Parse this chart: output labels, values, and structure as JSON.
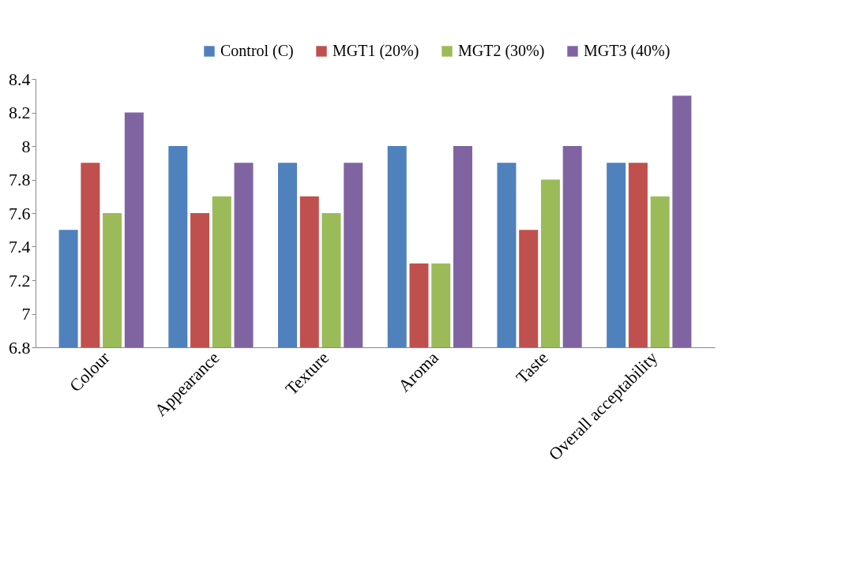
{
  "chart_data": {
    "type": "bar",
    "categories": [
      "Colour",
      "Appearance",
      "Texture",
      "Aroma",
      "Taste",
      "Overall acceptability"
    ],
    "series": [
      {
        "name": "Control (C)",
        "color": "#4f81bd",
        "values": [
          7.5,
          8.0,
          7.9,
          8.0,
          7.9,
          7.9
        ]
      },
      {
        "name": "MGT1 (20%)",
        "color": "#c0504d",
        "values": [
          7.9,
          7.6,
          7.7,
          7.3,
          7.5,
          7.9
        ]
      },
      {
        "name": "MGT2 (30%)",
        "color": "#9bbb59",
        "values": [
          7.6,
          7.7,
          7.6,
          7.3,
          7.8,
          7.7
        ]
      },
      {
        "name": "MGT3 (40%)",
        "color": "#8064a2",
        "values": [
          8.2,
          7.9,
          7.9,
          8.0,
          8.0,
          8.3
        ]
      }
    ],
    "ylim": [
      6.8,
      8.4
    ],
    "yticks": [
      6.8,
      7,
      7.2,
      7.4,
      7.6,
      7.8,
      8,
      8.2,
      8.4
    ],
    "grid": false,
    "legend": "top right"
  }
}
